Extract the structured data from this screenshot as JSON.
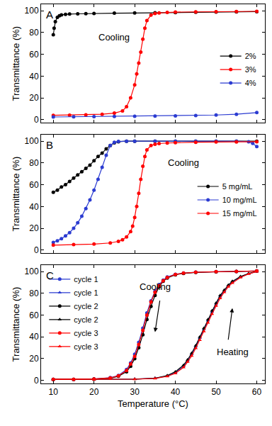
{
  "chart_data": [
    {
      "type": "line",
      "title": "A",
      "y_label": "Transmittance (%)",
      "xlim": [
        7,
        62
      ],
      "xticks": [
        10,
        20,
        30,
        40,
        50,
        60
      ],
      "ylim": [
        -3,
        106
      ],
      "yticks": [
        0,
        20,
        40,
        60,
        80,
        100
      ],
      "grid": false,
      "tick_labels": "y",
      "legend": "center right",
      "annotations": [
        {
          "text": "Cooling",
          "x": 25,
          "y": 76
        }
      ],
      "series": [
        {
          "name": "2%",
          "color": "#000000",
          "marker": "circle",
          "x": [
            10,
            10.2,
            10.5,
            11,
            11.5,
            12,
            13,
            14,
            16,
            18,
            20,
            25,
            30,
            35,
            40,
            45,
            50,
            55,
            60
          ],
          "values": [
            78,
            84,
            90,
            94,
            95.5,
            96.3,
            96.8,
            97,
            97.2,
            97.4,
            97.5,
            97.8,
            98,
            98.2,
            98.4,
            98.6,
            98.8,
            99,
            99.2
          ]
        },
        {
          "name": "3%",
          "color": "#ff0000",
          "marker": "circle",
          "x": [
            10,
            14,
            18,
            22,
            25,
            27,
            28,
            29,
            30,
            30.5,
            31,
            31.5,
            32,
            32.5,
            33,
            34,
            35,
            36,
            38,
            40,
            45,
            50,
            55,
            60
          ],
          "values": [
            4,
            4.2,
            4.5,
            5,
            6,
            8,
            12,
            20,
            32,
            42,
            52,
            62,
            74,
            84,
            91,
            96,
            97.5,
            98,
            98.5,
            98.8,
            99,
            99.2,
            99.4,
            99.5
          ]
        },
        {
          "name": "4%",
          "color": "#2b3bd1",
          "marker": "circle",
          "x": [
            10,
            15,
            20,
            25,
            30,
            35,
            40,
            45,
            50,
            55,
            60
          ],
          "values": [
            2.5,
            2.7,
            2.8,
            3,
            3.1,
            3.3,
            3.5,
            3.8,
            4.3,
            5,
            6.5
          ]
        }
      ]
    },
    {
      "type": "line",
      "title": "B",
      "y_label": "Transmittance (%)",
      "xlim": [
        7,
        62
      ],
      "xticks": [
        10,
        20,
        30,
        40,
        50,
        60
      ],
      "ylim": [
        -3,
        106
      ],
      "yticks": [
        0,
        20,
        40,
        60,
        80,
        100
      ],
      "grid": false,
      "tick_labels": "y",
      "legend": "center right",
      "annotations": [
        {
          "text": "Cooling",
          "x": 42,
          "y": 80
        }
      ],
      "series": [
        {
          "name": "5 mg/mL",
          "color": "#000000",
          "marker": "circle",
          "x": [
            10,
            11,
            12,
            13,
            14,
            15,
            16,
            17,
            18,
            19,
            20,
            21,
            22,
            23,
            24,
            25,
            26,
            28,
            30,
            35,
            40,
            45,
            50,
            55,
            60
          ],
          "values": [
            53,
            55,
            58,
            60,
            63,
            66,
            69,
            72,
            75,
            78,
            82,
            86,
            89,
            93,
            96,
            98.5,
            99.5,
            100,
            100,
            100,
            100,
            100,
            100,
            100,
            100
          ]
        },
        {
          "name": "10 mg/mL",
          "color": "#2b3bd1",
          "marker": "circle",
          "x": [
            10,
            11,
            12,
            13,
            14,
            15,
            16,
            17,
            18,
            19,
            20,
            21,
            22,
            23,
            24,
            25,
            26,
            28,
            30,
            35,
            40,
            45,
            50,
            55,
            58,
            59,
            60
          ],
          "values": [
            7,
            8.5,
            10.5,
            13,
            16,
            20,
            25,
            31,
            38,
            46,
            55,
            65,
            76,
            87,
            96,
            99,
            99.7,
            100,
            100,
            100,
            100,
            100,
            100,
            100,
            99.5,
            98,
            95
          ]
        },
        {
          "name": "15 mg/mL",
          "color": "#ff0000",
          "marker": "circle",
          "x": [
            10,
            15,
            20,
            24,
            26,
            27,
            28,
            29,
            29.5,
            30,
            30.5,
            31,
            31.5,
            32,
            32.5,
            33,
            34,
            35,
            36,
            38,
            40,
            45,
            50,
            55,
            60
          ],
          "values": [
            4.5,
            5,
            5.5,
            6.5,
            8,
            9.5,
            12,
            17,
            22,
            30,
            40,
            52,
            65,
            77,
            86,
            92,
            96,
            97.2,
            97.8,
            98.3,
            98.6,
            99,
            99.2,
            99.3,
            99.5
          ]
        }
      ]
    },
    {
      "type": "line",
      "title": "C",
      "x_label": "Temperature (°C)",
      "y_label": "Transmittance (%)",
      "xlim": [
        7,
        62
      ],
      "xticks": [
        10,
        20,
        30,
        40,
        50,
        60
      ],
      "ylim": [
        -3,
        106
      ],
      "yticks": [
        0,
        20,
        40,
        60,
        80,
        100
      ],
      "grid": false,
      "legend": "upper left",
      "annotations": [
        {
          "text": "Cooling",
          "x": 35,
          "y": 86
        },
        {
          "text": "Heating",
          "x": 54,
          "y": 26
        }
      ],
      "series": [
        {
          "name": "cycle 1",
          "color": "#2b3bd1",
          "marker": "circle",
          "x": [
            10,
            15,
            20,
            24,
            26,
            28,
            29,
            30,
            31,
            32,
            33,
            34,
            35,
            36,
            37,
            38,
            40,
            42,
            45,
            50,
            55,
            60
          ],
          "values": [
            1,
            1,
            1.3,
            2.5,
            4.5,
            10,
            16,
            24,
            35,
            48,
            62,
            73,
            82,
            88,
            92,
            95,
            97.5,
            98.5,
            99.3,
            99.8,
            100,
            100.5
          ]
        },
        {
          "name": "cycle 1",
          "color": "#2b3bd1",
          "marker": "triangle-up",
          "x": [
            10,
            20,
            30,
            35,
            38,
            40,
            42,
            43,
            44,
            45,
            46,
            47,
            48,
            49,
            50,
            51,
            52,
            53,
            54,
            56,
            58,
            60
          ],
          "values": [
            1,
            1,
            1.2,
            2,
            4,
            7,
            13,
            18,
            24,
            31,
            39,
            47,
            55,
            63,
            70,
            77,
            82,
            87,
            90.5,
            95,
            98,
            100
          ]
        },
        {
          "name": "cycle 2",
          "color": "#000000",
          "marker": "circle",
          "x": [
            10,
            15,
            20,
            24,
            26,
            28,
            29,
            30,
            31,
            32,
            33,
            34,
            35,
            36,
            37,
            38,
            40,
            42,
            45,
            50,
            55,
            60
          ],
          "values": [
            1,
            1,
            1.2,
            2,
            3.8,
            8,
            13,
            20,
            30,
            42,
            56,
            68,
            78,
            86,
            91,
            94,
            97,
            98.3,
            99.2,
            99.7,
            100,
            100.5
          ]
        },
        {
          "name": "cycle 2",
          "color": "#000000",
          "marker": "triangle-up",
          "x": [
            10,
            20,
            30,
            35,
            38,
            40,
            42,
            43,
            44,
            45,
            46,
            47,
            48,
            49,
            50,
            51,
            52,
            53,
            54,
            56,
            58,
            60
          ],
          "values": [
            1,
            1,
            1.2,
            2,
            4.5,
            8,
            14,
            19,
            25,
            32,
            40,
            48,
            56,
            64,
            71,
            78,
            83,
            87.5,
            91,
            95.5,
            98.2,
            100.3
          ]
        },
        {
          "name": "cycle 3",
          "color": "#ff0000",
          "marker": "circle",
          "x": [
            10,
            15,
            20,
            24,
            26,
            28,
            29,
            30,
            31,
            32,
            33,
            34,
            35,
            36,
            37,
            38,
            40,
            42,
            45,
            50,
            55,
            60
          ],
          "values": [
            1,
            1,
            1.3,
            2.3,
            4.2,
            9,
            15,
            22,
            33,
            46,
            60,
            72,
            81,
            87,
            91.5,
            94.5,
            97.3,
            98.5,
            99.3,
            99.8,
            100,
            100.5
          ]
        },
        {
          "name": "cycle 3",
          "color": "#ff0000",
          "marker": "triangle-up",
          "x": [
            10,
            20,
            30,
            35,
            38,
            40,
            42,
            43,
            44,
            45,
            46,
            47,
            48,
            49,
            50,
            51,
            52,
            53,
            54,
            56,
            58,
            60
          ],
          "values": [
            1,
            1,
            1.1,
            1.8,
            3.7,
            6.5,
            12,
            17,
            22.5,
            29.5,
            37,
            45,
            53,
            61,
            68.5,
            75.5,
            81,
            86,
            89.5,
            94.5,
            97.8,
            100
          ]
        }
      ]
    }
  ]
}
